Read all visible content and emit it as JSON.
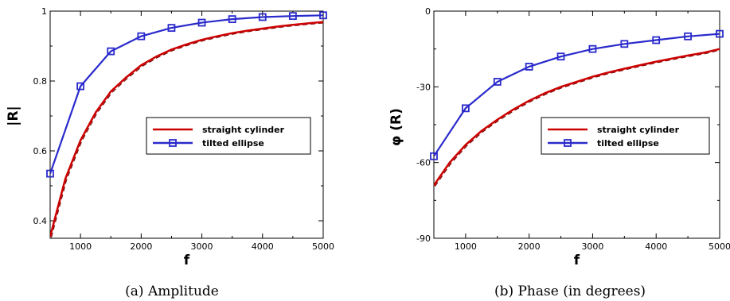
{
  "chart_data": [
    {
      "type": "line",
      "caption": "(a) Amplitude",
      "xlabel": "f",
      "ylabel": "|R|",
      "xlim": [
        500,
        5000
      ],
      "ylim": [
        0.35,
        1.0
      ],
      "x_ticks": [
        1000,
        2000,
        3000,
        4000,
        5000
      ],
      "y_ticks": [
        0.4,
        0.6,
        0.8,
        1
      ],
      "y_tick_labels": [
        "0.4",
        "0.6",
        "0.8",
        "1"
      ],
      "grid": false,
      "legend_position": "center-right",
      "series": [
        {
          "name": "straight cylinder",
          "color": "#cc0000",
          "marker": "none",
          "x": [
            500,
            750,
            1000,
            1250,
            1500,
            1750,
            2000,
            2250,
            2500,
            2750,
            3000,
            3250,
            3500,
            3750,
            4000,
            4250,
            4500,
            4750,
            5000
          ],
          "y": [
            0.355,
            0.52,
            0.63,
            0.71,
            0.77,
            0.81,
            0.845,
            0.87,
            0.89,
            0.905,
            0.918,
            0.928,
            0.937,
            0.944,
            0.95,
            0.956,
            0.961,
            0.965,
            0.969
          ]
        },
        {
          "name": "tilted ellipse",
          "color": "#2a2acc",
          "marker": "square",
          "x": [
            500,
            1000,
            1500,
            2000,
            2500,
            3000,
            3500,
            4000,
            4500,
            5000
          ],
          "y": [
            0.535,
            0.785,
            0.885,
            0.928,
            0.952,
            0.967,
            0.977,
            0.983,
            0.986,
            0.988
          ]
        }
      ]
    },
    {
      "type": "line",
      "caption": "(b) Phase (in degrees)",
      "xlabel": "f",
      "ylabel": "φ (R)",
      "xlim": [
        500,
        5000
      ],
      "ylim": [
        -90,
        0
      ],
      "x_ticks": [
        1000,
        2000,
        3000,
        4000,
        5000
      ],
      "y_ticks": [
        -90,
        -60,
        -30,
        0
      ],
      "y_tick_labels": [
        "-90",
        "-60",
        "-30",
        "0"
      ],
      "grid": false,
      "legend_position": "center-right",
      "series": [
        {
          "name": "straight cylinder",
          "color": "#cc0000",
          "marker": "none",
          "x": [
            500,
            750,
            1000,
            1250,
            1500,
            1750,
            2000,
            2250,
            2500,
            2750,
            3000,
            3250,
            3500,
            3750,
            4000,
            4250,
            4500,
            4750,
            5000
          ],
          "y": [
            -69,
            -60,
            -53,
            -47.5,
            -43,
            -39,
            -35.5,
            -32.5,
            -30,
            -28,
            -26,
            -24.3,
            -22.8,
            -21.4,
            -20,
            -18.8,
            -17.6,
            -16.5,
            -15
          ]
        },
        {
          "name": "tilted ellipse",
          "color": "#2a2acc",
          "marker": "square",
          "x": [
            500,
            1000,
            1500,
            2000,
            2500,
            3000,
            3500,
            4000,
            4500,
            5000
          ],
          "y": [
            -57.5,
            -38.5,
            -28,
            -22,
            -18,
            -15,
            -13,
            -11.5,
            -10,
            -9
          ]
        }
      ]
    }
  ]
}
